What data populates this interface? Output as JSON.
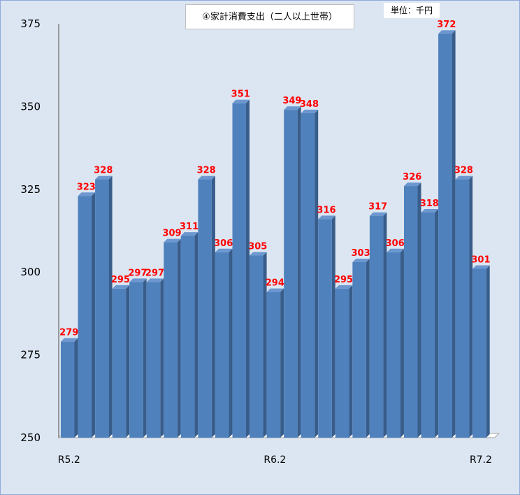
{
  "chart_data": {
    "type": "bar",
    "title": "④家計消費支出（二人以上世帯）",
    "unit": "単位：千円",
    "xlabel": "",
    "ylabel": "",
    "ylim": [
      250,
      375
    ],
    "yticks": [
      250,
      275,
      300,
      325,
      350,
      375
    ],
    "categories": [
      "R5.2",
      "",
      "",
      "",
      "",
      "",
      "",
      "",
      "",
      "",
      "",
      "",
      "R6.2",
      "",
      "",
      "",
      "",
      "",
      "",
      "",
      "",
      "",
      "",
      "",
      "R7.2"
    ],
    "tick_labels": [
      {
        "index": 0,
        "label": "R5.2"
      },
      {
        "index": 12,
        "label": "R6.2"
      },
      {
        "index": 24,
        "label": "R7.2"
      }
    ],
    "values": [
      279,
      323,
      328,
      295,
      297,
      297,
      309,
      311,
      328,
      306,
      351,
      305,
      294,
      349,
      348,
      316,
      295,
      303,
      317,
      306,
      326,
      318,
      372,
      328,
      301
    ],
    "grid": false,
    "legend": "none",
    "colors": {
      "bar_front": "#4f81bd",
      "bar_side": "#385d8a",
      "bar_top": "#6d97cf",
      "label": "#ff0000",
      "background": "#dce6f2",
      "floor": "#ffffff"
    }
  }
}
